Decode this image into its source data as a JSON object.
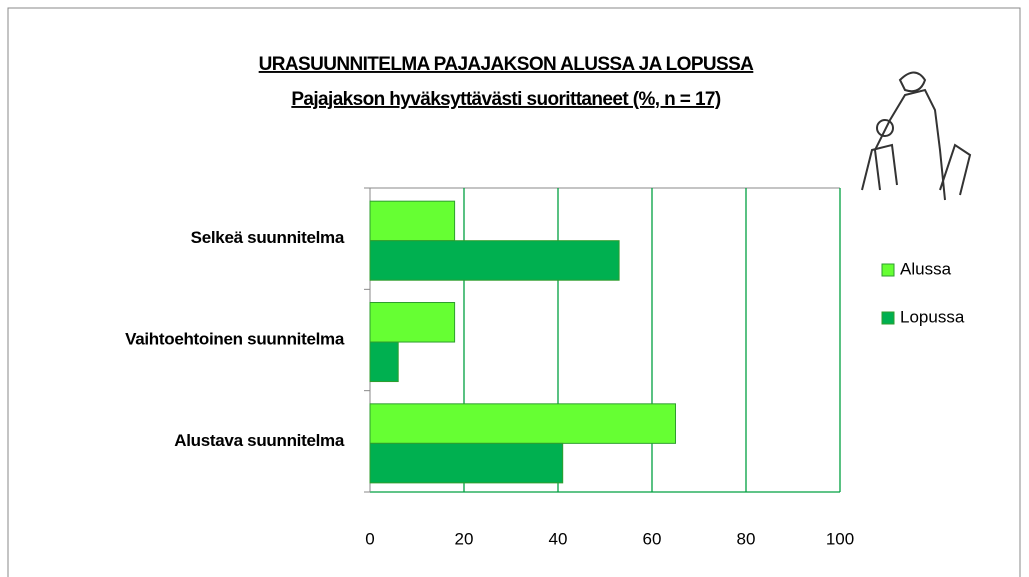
{
  "chart_data": {
    "type": "bar",
    "orientation": "horizontal",
    "title": "URASUUNNITELMA PAJAJAKSON ALUSSA JA LOPUSSA",
    "subtitle": "Pajajakson hyväksyttävästi suorittaneet (%,  n = 17)",
    "categories": [
      "Selkeä suunnitelma",
      "Vaihtoehtoinen suunnitelma",
      "Alustava suunnitelma"
    ],
    "series": [
      {
        "name": "Alussa",
        "color": "#66ff33",
        "values": [
          18,
          18,
          65
        ]
      },
      {
        "name": "Lopussa",
        "color": "#00b050",
        "values": [
          53,
          6,
          41
        ]
      }
    ],
    "xlim": [
      0,
      100
    ],
    "xticks": [
      0,
      20,
      40,
      60,
      80,
      100
    ],
    "grid": true,
    "legend": "right"
  }
}
